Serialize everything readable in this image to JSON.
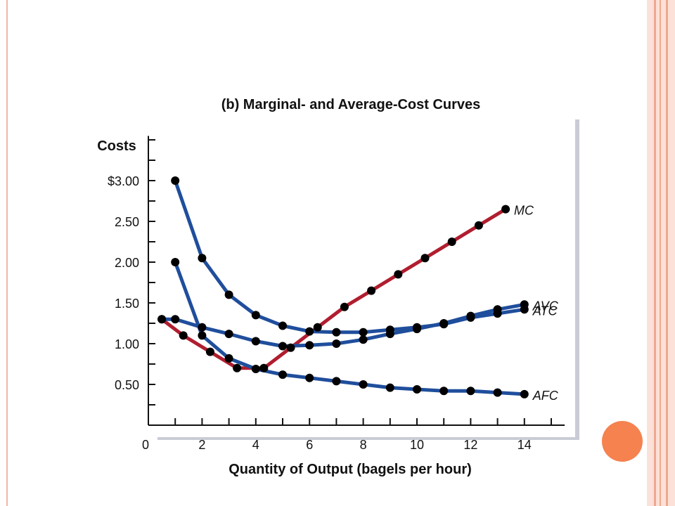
{
  "chart_data": {
    "type": "line",
    "title": "(b) Marginal- and Average-Cost Curves",
    "xlabel": "Quantity of Output (bagels per hour)",
    "ylabel": "Costs",
    "xlim": [
      0,
      15.5
    ],
    "ylim": [
      0,
      3.6
    ],
    "x_ticks": [
      0,
      2,
      4,
      6,
      8,
      10,
      12,
      14
    ],
    "x_tick_labels": [
      "0",
      "2",
      "4",
      "6",
      "8",
      "10",
      "12",
      "14"
    ],
    "y_ticks": [
      0.5,
      1.0,
      1.5,
      2.0,
      2.5,
      3.0
    ],
    "y_tick_labels": [
      "0.50",
      "1.00",
      "1.50",
      "2.00",
      "2.50",
      "$3.00"
    ],
    "grid": false,
    "series": [
      {
        "name": "MC",
        "color": "#b01e2f",
        "x": [
          0.5,
          1.3,
          2.3,
          3.3,
          4.3,
          5.3,
          6.3,
          7.3,
          8.3,
          9.3,
          10.3,
          11.3,
          12.3,
          13.3
        ],
        "y": [
          1.3,
          1.1,
          0.9,
          0.7,
          0.7,
          0.95,
          1.2,
          1.45,
          1.65,
          1.85,
          2.05,
          2.25,
          2.45,
          2.65
        ]
      },
      {
        "name": "ATC",
        "color": "#1f4e9c",
        "x": [
          1,
          2,
          3,
          4,
          5,
          6,
          7,
          8,
          9,
          10,
          11,
          12,
          13,
          14
        ],
        "y": [
          3.0,
          2.05,
          1.6,
          1.35,
          1.22,
          1.15,
          1.14,
          1.14,
          1.17,
          1.2,
          1.24,
          1.32,
          1.37,
          1.42
        ]
      },
      {
        "name": "AVC",
        "color": "#1f4e9c",
        "x": [
          0.5,
          1,
          2,
          3,
          4,
          5,
          6,
          7,
          8,
          9,
          10,
          11,
          12,
          13,
          14
        ],
        "y": [
          1.3,
          1.3,
          1.2,
          1.12,
          1.03,
          0.97,
          0.98,
          1.0,
          1.05,
          1.12,
          1.18,
          1.25,
          1.34,
          1.42,
          1.48
        ]
      },
      {
        "name": "AFC",
        "color": "#1f4e9c",
        "x": [
          1,
          2,
          3,
          4,
          5,
          6,
          7,
          8,
          9,
          10,
          11,
          12,
          13,
          14
        ],
        "y": [
          2.0,
          1.1,
          0.82,
          0.69,
          0.62,
          0.58,
          0.54,
          0.5,
          0.46,
          0.44,
          0.42,
          0.42,
          0.4,
          0.38
        ]
      }
    ]
  }
}
